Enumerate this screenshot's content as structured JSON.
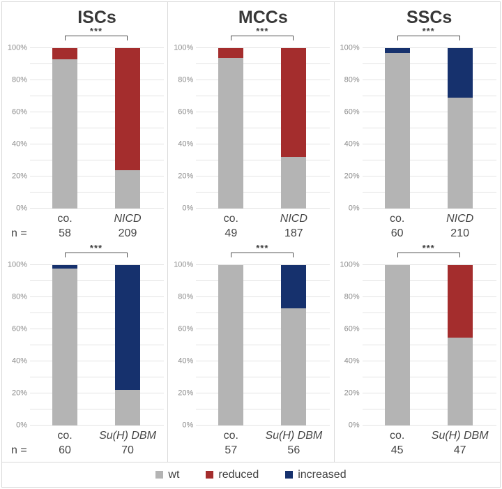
{
  "figure": {
    "columns": [
      {
        "title": "ISCs"
      },
      {
        "title": "MCCs"
      },
      {
        "title": "SSCs"
      }
    ],
    "n_prefix": "n ="
  },
  "axis": {
    "tick_labels": [
      "0%",
      "20%",
      "40%",
      "60%",
      "80%",
      "100%"
    ],
    "minor_gridline_step": 10
  },
  "colors": {
    "wt": "#b4b4b4",
    "reduced": "#a42d2d",
    "increased": "#16316d"
  },
  "legend": {
    "items": [
      {
        "key": "wt",
        "label": "wt"
      },
      {
        "key": "reduced",
        "label": "reduced"
      },
      {
        "key": "increased",
        "label": "increased"
      }
    ]
  },
  "chart_data": [
    {
      "type": "bar",
      "stacked": true,
      "group": "ISCs",
      "row": "top",
      "categories": [
        "co.",
        "NICD"
      ],
      "n": [
        "58",
        "209"
      ],
      "show_n_prefix": true,
      "significance": "***",
      "ylim": [
        0,
        100
      ],
      "series": [
        {
          "name": "wt",
          "values": [
            93,
            24
          ]
        },
        {
          "name": "reduced",
          "values": [
            7,
            76
          ]
        },
        {
          "name": "increased",
          "values": [
            0,
            0
          ]
        }
      ]
    },
    {
      "type": "bar",
      "stacked": true,
      "group": "MCCs",
      "row": "top",
      "categories": [
        "co.",
        "NICD"
      ],
      "n": [
        "49",
        "187"
      ],
      "show_n_prefix": false,
      "significance": "***",
      "ylim": [
        0,
        100
      ],
      "series": [
        {
          "name": "wt",
          "values": [
            94,
            32
          ]
        },
        {
          "name": "reduced",
          "values": [
            6,
            68
          ]
        },
        {
          "name": "increased",
          "values": [
            0,
            0
          ]
        }
      ]
    },
    {
      "type": "bar",
      "stacked": true,
      "group": "SSCs",
      "row": "top",
      "categories": [
        "co.",
        "NICD"
      ],
      "n": [
        "60",
        "210"
      ],
      "show_n_prefix": false,
      "significance": "***",
      "ylim": [
        0,
        100
      ],
      "series": [
        {
          "name": "wt",
          "values": [
            97,
            69
          ]
        },
        {
          "name": "reduced",
          "values": [
            0,
            0
          ]
        },
        {
          "name": "increased",
          "values": [
            3,
            31
          ]
        }
      ]
    },
    {
      "type": "bar",
      "stacked": true,
      "group": "ISCs",
      "row": "bottom",
      "categories": [
        "co.",
        "Su(H) DBM"
      ],
      "n": [
        "60",
        "70"
      ],
      "show_n_prefix": true,
      "significance": "***",
      "ylim": [
        0,
        100
      ],
      "series": [
        {
          "name": "wt",
          "values": [
            98,
            22
          ]
        },
        {
          "name": "reduced",
          "values": [
            0,
            0
          ]
        },
        {
          "name": "increased",
          "values": [
            2,
            78
          ]
        }
      ]
    },
    {
      "type": "bar",
      "stacked": true,
      "group": "MCCs",
      "row": "bottom",
      "categories": [
        "co.",
        "Su(H) DBM"
      ],
      "n": [
        "57",
        "56"
      ],
      "show_n_prefix": false,
      "significance": "***",
      "ylim": [
        0,
        100
      ],
      "series": [
        {
          "name": "wt",
          "values": [
            100,
            73
          ]
        },
        {
          "name": "reduced",
          "values": [
            0,
            0
          ]
        },
        {
          "name": "increased",
          "values": [
            0,
            27
          ]
        }
      ]
    },
    {
      "type": "bar",
      "stacked": true,
      "group": "SSCs",
      "row": "bottom",
      "categories": [
        "co.",
        "Su(H) DBM"
      ],
      "n": [
        "45",
        "47"
      ],
      "show_n_prefix": false,
      "significance": "***",
      "ylim": [
        0,
        100
      ],
      "series": [
        {
          "name": "wt",
          "values": [
            100,
            55
          ]
        },
        {
          "name": "reduced",
          "values": [
            0,
            45
          ]
        },
        {
          "name": "increased",
          "values": [
            0,
            0
          ]
        }
      ]
    }
  ]
}
